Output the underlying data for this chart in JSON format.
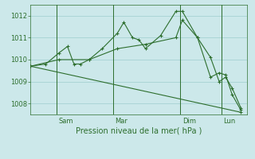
{
  "background_color": "#cce8ea",
  "grid_color": "#9ecece",
  "line_color": "#2d6e2d",
  "ylabel": "Pression niveau de la mer( hPa )",
  "ylim": [
    1007.5,
    1012.5
  ],
  "yticks": [
    1008,
    1009,
    1010,
    1011,
    1012
  ],
  "day_positions": [
    0.12,
    0.38,
    0.69,
    0.88
  ],
  "day_labels": [
    "Sam",
    "Mar",
    "Dim",
    "Lun"
  ],
  "series": [
    {
      "x": [
        0.0,
        0.07,
        0.13,
        0.17,
        0.2,
        0.23,
        0.27,
        0.33,
        0.4,
        0.43,
        0.47,
        0.5,
        0.53,
        0.6,
        0.67,
        0.7,
        0.77,
        0.83,
        0.87,
        0.9,
        0.93,
        0.97
      ],
      "y": [
        1009.7,
        1009.8,
        1010.3,
        1010.6,
        1009.8,
        1009.8,
        1010.0,
        1010.5,
        1011.2,
        1011.7,
        1011.0,
        1010.9,
        1010.5,
        1011.1,
        1012.2,
        1012.2,
        1011.0,
        1010.1,
        1009.0,
        1009.2,
        1008.7,
        1007.8
      ]
    },
    {
      "x": [
        0.0,
        0.13,
        0.27,
        0.4,
        0.53,
        0.67,
        0.7,
        0.77,
        0.83,
        0.87,
        0.9,
        0.93,
        0.97
      ],
      "y": [
        1009.7,
        1010.0,
        1010.0,
        1010.5,
        1010.7,
        1011.0,
        1011.8,
        1011.0,
        1009.2,
        1009.4,
        1009.3,
        1008.4,
        1007.7
      ]
    },
    {
      "x": [
        0.0,
        0.97
      ],
      "y": [
        1009.7,
        1007.6
      ]
    }
  ]
}
